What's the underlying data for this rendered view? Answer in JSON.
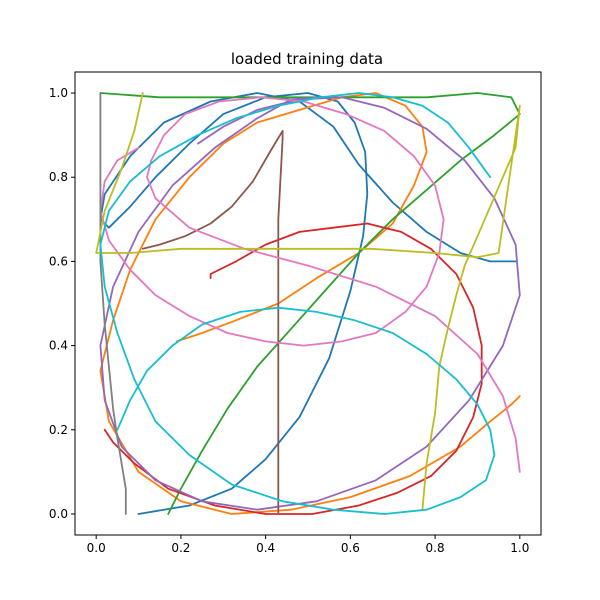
{
  "chart_data": {
    "type": "line",
    "title": "loaded training data",
    "xlabel": "",
    "ylabel": "",
    "xlim": [
      -0.05,
      1.05
    ],
    "ylim": [
      -0.05,
      1.05
    ],
    "xticks": [
      "0.0",
      "0.2",
      "0.4",
      "0.6",
      "0.8",
      "1.0"
    ],
    "yticks": [
      "0.0",
      "0.2",
      "0.4",
      "0.6",
      "0.8",
      "1.0"
    ],
    "grid": false,
    "legend": "none",
    "series": [
      {
        "color": "#1f77b4",
        "x": [
          0.1,
          0.22,
          0.32,
          0.4,
          0.48,
          0.55,
          0.6,
          0.63,
          0.64,
          0.635,
          0.61,
          0.57,
          0.5,
          0.4,
          0.3,
          0.22,
          0.14,
          0.08,
          0.03,
          0.01,
          0.02,
          0.08,
          0.16,
          0.27,
          0.38,
          0.48,
          0.56,
          0.62,
          0.7,
          0.78,
          0.86,
          0.93,
          0.99
        ],
        "y": [
          0.0,
          0.02,
          0.06,
          0.13,
          0.23,
          0.37,
          0.53,
          0.66,
          0.76,
          0.86,
          0.93,
          0.98,
          1.0,
          0.99,
          0.95,
          0.88,
          0.8,
          0.73,
          0.68,
          0.7,
          0.76,
          0.85,
          0.93,
          0.98,
          1.0,
          0.98,
          0.92,
          0.83,
          0.74,
          0.67,
          0.62,
          0.6,
          0.6
        ]
      },
      {
        "color": "#ff7f0e",
        "x": [
          0.19,
          0.25,
          0.33,
          0.43,
          0.52,
          0.62,
          0.7,
          0.75,
          0.78,
          0.77,
          0.73,
          0.66,
          0.58,
          0.48,
          0.38,
          0.3,
          0.22,
          0.14,
          0.08,
          0.04,
          0.01,
          0.03,
          0.1,
          0.2,
          0.32,
          0.46,
          0.6,
          0.74,
          0.86,
          0.93,
          0.98,
          1.0
        ],
        "y": [
          0.41,
          0.43,
          0.46,
          0.5,
          0.56,
          0.62,
          0.69,
          0.78,
          0.86,
          0.92,
          0.97,
          1.0,
          0.99,
          0.96,
          0.93,
          0.88,
          0.8,
          0.7,
          0.58,
          0.46,
          0.34,
          0.22,
          0.1,
          0.03,
          0.0,
          0.01,
          0.04,
          0.09,
          0.16,
          0.22,
          0.26,
          0.28
        ]
      },
      {
        "color": "#2ca02c",
        "x": [
          0.17,
          0.2,
          0.25,
          0.31,
          0.38,
          0.46,
          0.54,
          0.62,
          0.7,
          0.78,
          0.86,
          0.94,
          1.0,
          0.98,
          0.9,
          0.78,
          0.62,
          0.46,
          0.3,
          0.15,
          0.01
        ],
        "y": [
          0.0,
          0.06,
          0.15,
          0.25,
          0.35,
          0.44,
          0.53,
          0.62,
          0.7,
          0.77,
          0.84,
          0.9,
          0.95,
          0.99,
          1.0,
          0.99,
          0.99,
          0.99,
          0.99,
          0.99,
          1.0
        ]
      },
      {
        "color": "#d62728",
        "x": [
          0.27,
          0.27,
          0.33,
          0.4,
          0.48,
          0.56,
          0.64,
          0.72,
          0.79,
          0.85,
          0.89,
          0.91,
          0.91,
          0.89,
          0.85,
          0.79,
          0.71,
          0.62,
          0.51,
          0.4,
          0.28,
          0.17,
          0.09,
          0.04,
          0.02
        ],
        "y": [
          0.56,
          0.57,
          0.6,
          0.64,
          0.67,
          0.68,
          0.69,
          0.67,
          0.63,
          0.57,
          0.49,
          0.4,
          0.31,
          0.23,
          0.15,
          0.09,
          0.05,
          0.02,
          0.0,
          0.0,
          0.02,
          0.06,
          0.12,
          0.17,
          0.2
        ]
      },
      {
        "color": "#9467bd",
        "x": [
          0.24,
          0.3,
          0.38,
          0.48,
          0.58,
          0.68,
          0.78,
          0.87,
          0.94,
          0.99,
          1.0,
          0.96,
          0.88,
          0.78,
          0.66,
          0.52,
          0.38,
          0.25,
          0.14,
          0.06,
          0.02,
          0.01,
          0.04,
          0.1,
          0.18,
          0.28,
          0.38,
          0.46,
          0.53
        ],
        "y": [
          0.88,
          0.92,
          0.96,
          0.985,
          0.99,
          0.965,
          0.915,
          0.84,
          0.75,
          0.64,
          0.52,
          0.4,
          0.27,
          0.16,
          0.08,
          0.03,
          0.01,
          0.03,
          0.08,
          0.16,
          0.27,
          0.4,
          0.54,
          0.67,
          0.78,
          0.87,
          0.94,
          0.985,
          0.99
        ]
      },
      {
        "color": "#8c564b",
        "x": [
          0.11,
          0.15,
          0.21,
          0.27,
          0.32,
          0.37,
          0.41,
          0.44,
          0.44,
          0.43,
          0.43,
          0.43,
          0.43,
          0.43
        ],
        "y": [
          0.63,
          0.64,
          0.66,
          0.69,
          0.73,
          0.79,
          0.86,
          0.91,
          0.89,
          0.7,
          0.5,
          0.3,
          0.12,
          0.0
        ]
      },
      {
        "color": "#e377c2",
        "x": [
          0.1,
          0.05,
          0.02,
          0.01,
          0.03,
          0.08,
          0.14,
          0.22,
          0.31,
          0.4,
          0.49,
          0.58,
          0.66,
          0.73,
          0.78,
          0.81,
          0.82,
          0.8,
          0.75,
          0.68,
          0.59,
          0.49,
          0.39,
          0.29,
          0.21,
          0.16,
          0.13,
          0.12,
          0.14,
          0.22,
          0.35,
          0.5,
          0.66,
          0.8,
          0.9,
          0.96,
          0.99,
          1.0
        ],
        "y": [
          0.87,
          0.84,
          0.79,
          0.72,
          0.65,
          0.58,
          0.52,
          0.47,
          0.43,
          0.41,
          0.4,
          0.41,
          0.43,
          0.48,
          0.54,
          0.62,
          0.7,
          0.78,
          0.85,
          0.91,
          0.95,
          0.98,
          0.99,
          0.98,
          0.95,
          0.9,
          0.84,
          0.8,
          0.75,
          0.68,
          0.63,
          0.59,
          0.54,
          0.47,
          0.38,
          0.28,
          0.18,
          0.1
        ]
      },
      {
        "color": "#7f7f7f",
        "x": [
          0.01,
          0.01,
          0.01,
          0.02,
          0.03,
          0.04,
          0.05,
          0.06,
          0.07,
          0.07
        ],
        "y": [
          1.0,
          0.8,
          0.6,
          0.45,
          0.35,
          0.25,
          0.18,
          0.12,
          0.06,
          0.0
        ]
      },
      {
        "color": "#bcbd22",
        "x": [
          0.77,
          0.78,
          0.8,
          0.81,
          0.83,
          0.85,
          0.87,
          0.9,
          0.93,
          0.96,
          0.99,
          1.0,
          0.95,
          0.9,
          0.8,
          0.65,
          0.5,
          0.35,
          0.2,
          0.08,
          0.0,
          0.02,
          0.06,
          0.09,
          0.11
        ],
        "y": [
          0.01,
          0.12,
          0.24,
          0.35,
          0.44,
          0.52,
          0.59,
          0.66,
          0.73,
          0.8,
          0.87,
          0.97,
          0.62,
          0.61,
          0.62,
          0.63,
          0.63,
          0.63,
          0.63,
          0.62,
          0.62,
          0.72,
          0.82,
          0.91,
          1.0
        ]
      },
      {
        "color": "#17becf",
        "x": [
          0.05,
          0.08,
          0.12,
          0.18,
          0.25,
          0.34,
          0.43,
          0.52,
          0.61,
          0.7,
          0.78,
          0.85,
          0.9,
          0.93,
          0.94,
          0.92,
          0.86,
          0.78,
          0.68,
          0.56,
          0.44,
          0.32,
          0.22,
          0.14,
          0.09,
          0.05,
          0.02,
          0.01,
          0.03,
          0.08,
          0.15,
          0.24,
          0.33,
          0.43,
          0.53,
          0.62,
          0.7,
          0.77,
          0.83,
          0.88,
          0.93
        ],
        "y": [
          0.2,
          0.27,
          0.34,
          0.4,
          0.45,
          0.48,
          0.49,
          0.48,
          0.46,
          0.43,
          0.38,
          0.32,
          0.26,
          0.2,
          0.14,
          0.08,
          0.04,
          0.01,
          0.0,
          0.01,
          0.03,
          0.07,
          0.14,
          0.22,
          0.32,
          0.43,
          0.54,
          0.64,
          0.72,
          0.79,
          0.85,
          0.9,
          0.94,
          0.97,
          0.99,
          1.0,
          0.99,
          0.97,
          0.93,
          0.87,
          0.8
        ]
      }
    ]
  }
}
